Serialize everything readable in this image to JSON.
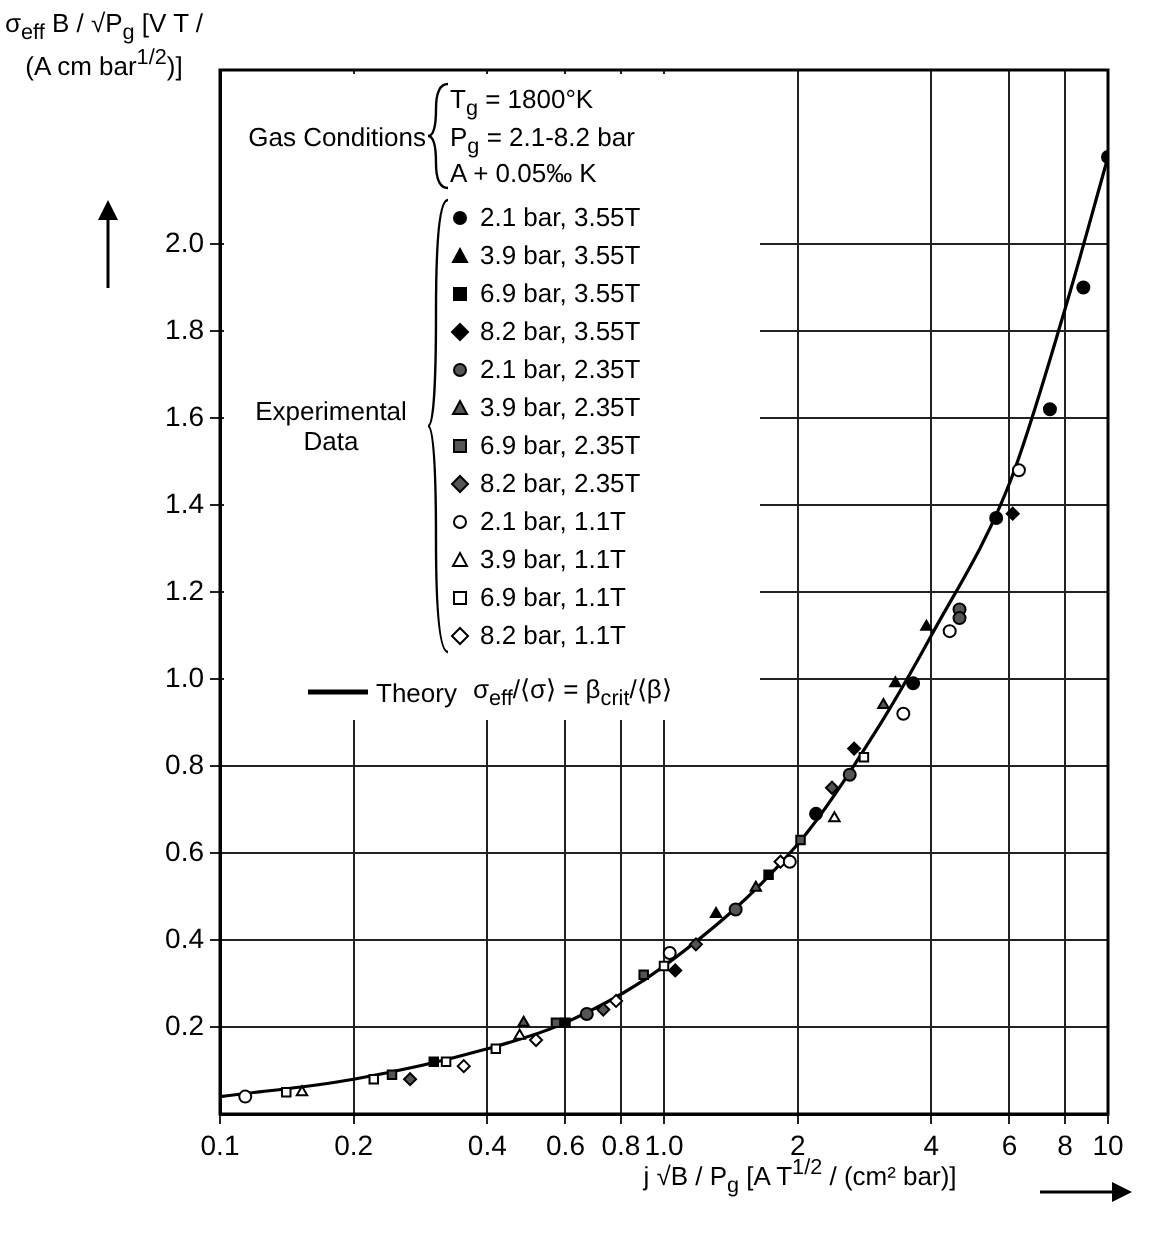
{
  "chart_data": {
    "type": "scatter",
    "xlabel": "j √B / P$_{g}$  [A T$^{1/2}$ / (cm² bar)]",
    "ylabel": "σ$_{eff}$ B / √P$_{g}$  [V T / (A cm bar$^{1/2}$)]",
    "legend_title": "Experimental Data",
    "annotations": [
      "Gas Conditions",
      "T$_{g}$ = 1800°K",
      "P$_{g}$ = 2.1-8.2 bar",
      "A + 0.05‰ K",
      "σ$_{eff}$/⟨σ⟩ = β$_{crit}$/⟨β⟩"
    ],
    "log": "x",
    "grid": true,
    "legend": "top left",
    "xlim": [
      0.1,
      10
    ],
    "xticks": [
      0.1,
      0.2,
      0.4,
      0.6,
      0.8,
      {
        "value": 1,
        "label": "1.0"
      },
      2,
      4,
      6,
      8,
      10
    ],
    "ylim": [
      0,
      2.4
    ],
    "yticks": [
      0.2,
      0.4,
      0.6,
      0.8,
      {
        "value": 1,
        "label": "1.0"
      },
      1.2,
      1.4,
      1.6,
      1.8,
      {
        "value": 2,
        "label": "2.0"
      }
    ],
    "series": [
      {
        "name": "2.1 bar, 3.55T",
        "color": "#000000",
        "marker": "circle",
        "x": [
          10,
          8.8,
          7.4,
          5.6,
          3.64,
          2.2
        ],
        "values": [
          2.2,
          1.9,
          1.62,
          1.37,
          0.99,
          0.69
        ]
      },
      {
        "name": "3.9 bar, 3.55T",
        "color": "#000000",
        "marker": "triangle",
        "x": [
          3.9,
          3.32,
          1.31
        ],
        "values": [
          1.12,
          0.99,
          0.46
        ]
      },
      {
        "name": "6.9 bar, 3.55T",
        "color": "#000000",
        "marker": "square",
        "x": [
          1.72,
          0.6,
          0.303
        ],
        "values": [
          0.55,
          0.21,
          0.12
        ]
      },
      {
        "name": "8.2 bar, 3.55T",
        "color": "#000000",
        "marker": "diamond",
        "x": [
          6.1,
          2.68,
          1.06
        ],
        "values": [
          1.38,
          0.84,
          0.33
        ]
      },
      {
        "name": "2.1 bar, 2.35T",
        "color": "#555555",
        "marker": "circle",
        "x": [
          4.63,
          4.63,
          2.62,
          1.45,
          0.67
        ],
        "values": [
          1.16,
          1.14,
          0.78,
          0.47,
          0.23
        ]
      },
      {
        "name": "3.9 bar, 2.35T",
        "color": "#555555",
        "marker": "triangle",
        "x": [
          3.12,
          1.61,
          0.483
        ],
        "values": [
          0.94,
          0.52,
          0.21
        ]
      },
      {
        "name": "6.9 bar, 2.35T",
        "color": "#555555",
        "marker": "square",
        "x": [
          2.03,
          0.9,
          0.571,
          0.244
        ],
        "values": [
          0.63,
          0.32,
          0.21,
          0.09
        ]
      },
      {
        "name": "8.2 bar, 2.35T",
        "color": "#555555",
        "marker": "diamond",
        "x": [
          2.39,
          1.18,
          0.73,
          0.268
        ],
        "values": [
          0.75,
          0.39,
          0.24,
          0.08
        ]
      },
      {
        "name": "2.1 bar, 1.1T",
        "color": "#ffffff",
        "marker": "circle",
        "x": [
          6.3,
          4.4,
          3.46,
          1.92,
          1.03,
          0.114
        ],
        "values": [
          1.48,
          1.11,
          0.92,
          0.58,
          0.37,
          0.04
        ]
      },
      {
        "name": "3.9 bar, 1.1T",
        "color": "#ffffff",
        "marker": "triangle",
        "x": [
          2.42,
          0.473,
          0.153
        ],
        "values": [
          0.68,
          0.18,
          0.05
        ]
      },
      {
        "name": "6.9 bar, 1.1T",
        "color": "#ffffff",
        "marker": "square",
        "x": [
          2.82,
          1.0,
          0.418,
          0.323,
          0.222,
          0.141
        ],
        "values": [
          0.82,
          0.34,
          0.15,
          0.12,
          0.08,
          0.05
        ]
      },
      {
        "name": "8.2 bar, 1.1T",
        "color": "#ffffff",
        "marker": "diamond",
        "x": [
          1.83,
          0.78,
          0.515,
          0.354
        ],
        "values": [
          0.58,
          0.26,
          0.17,
          0.11
        ]
      },
      {
        "name": "Theory",
        "type": "line",
        "color": "#000000",
        "marker": "none",
        "line_style": "solid",
        "x": [
          0.1,
          0.2,
          0.4,
          0.6,
          1.0,
          2,
          3,
          4,
          6,
          8,
          10
        ],
        "values": [
          0.04,
          0.08,
          0.15,
          0.21,
          0.34,
          0.62,
          0.88,
          1.1,
          1.45,
          1.85,
          2.2
        ]
      }
    ]
  }
}
